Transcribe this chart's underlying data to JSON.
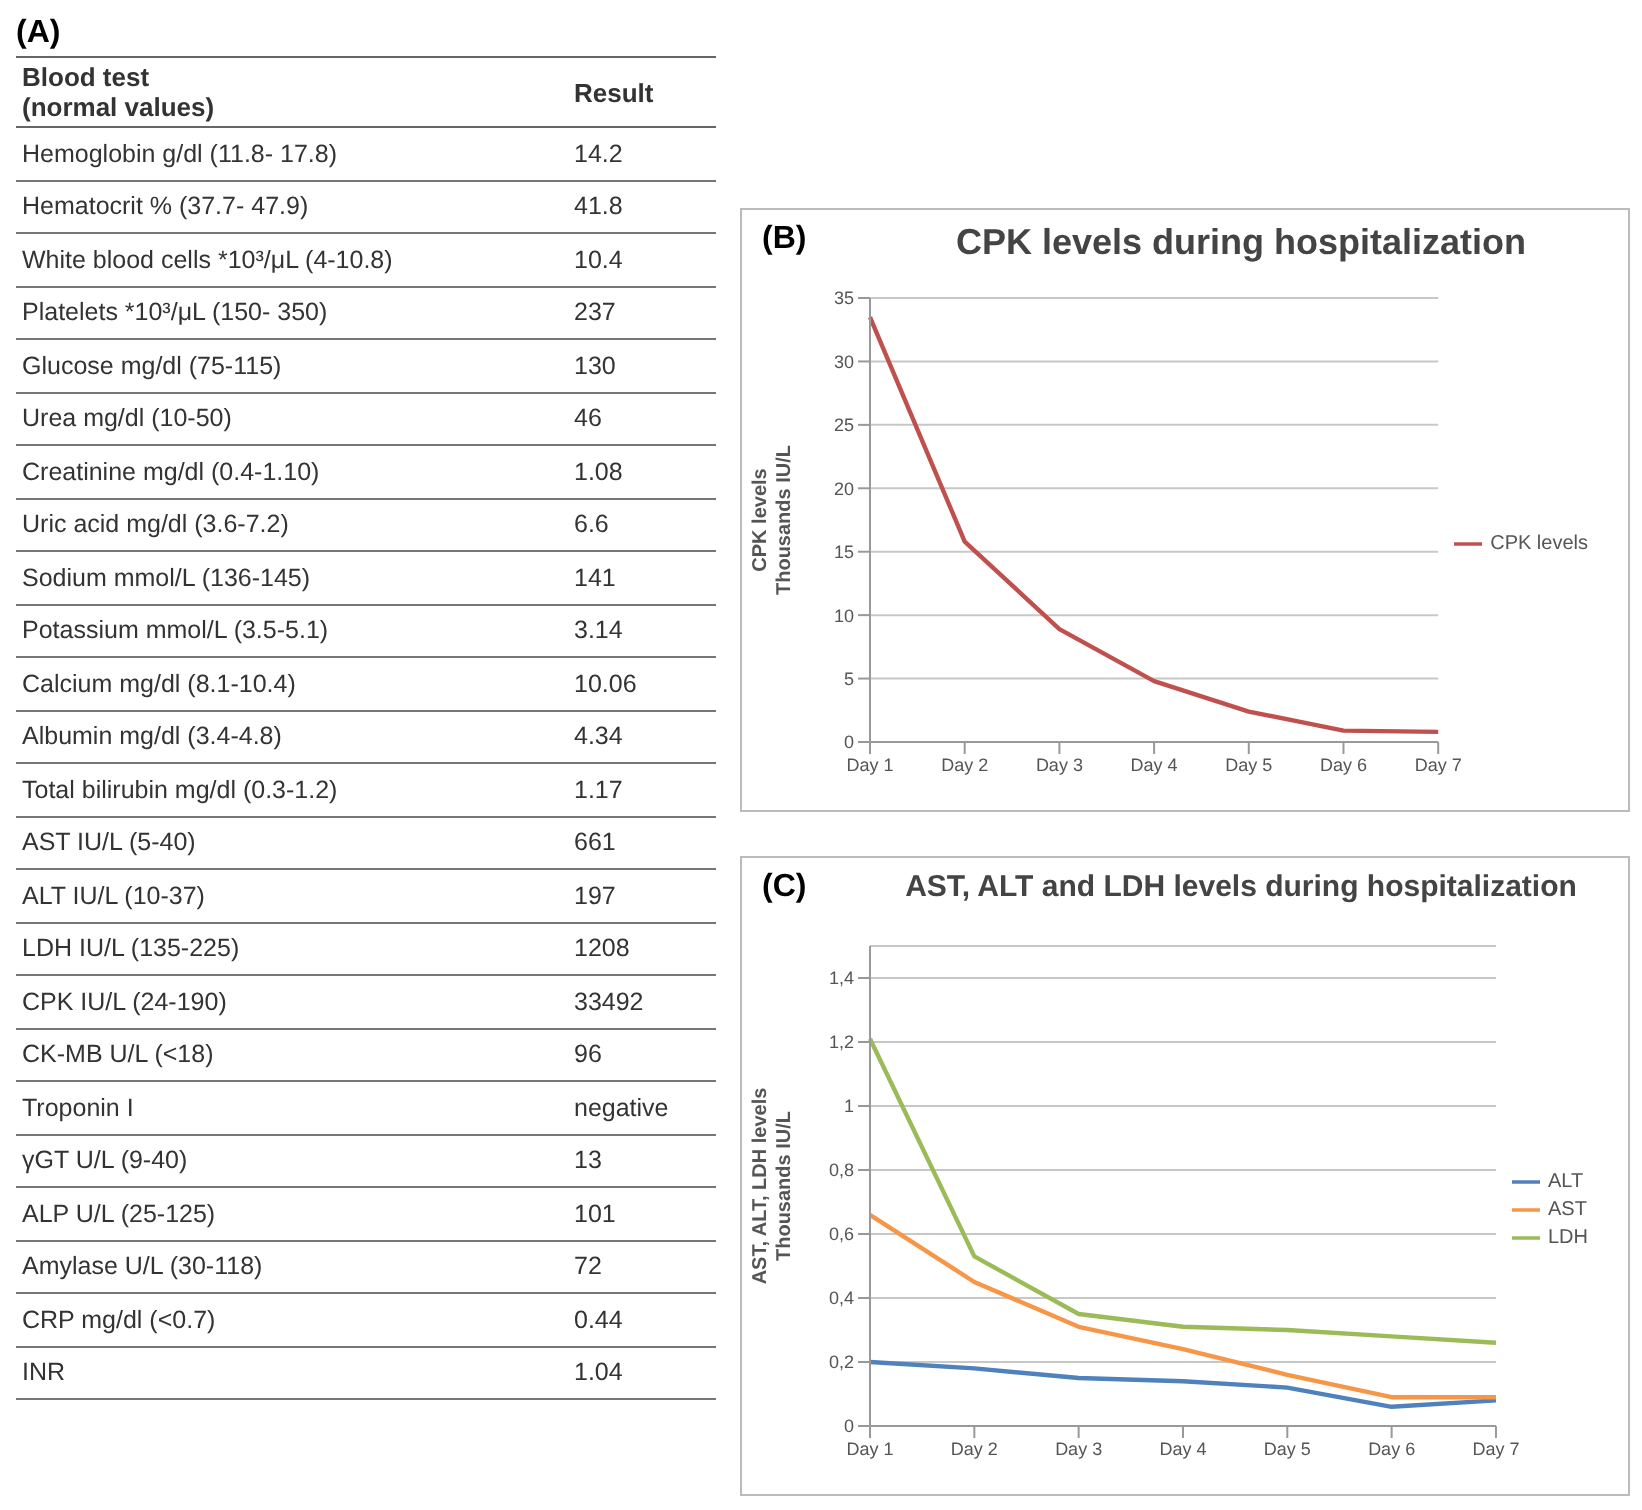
{
  "chart_data": [
    {
      "type": "other",
      "title": "(A)",
      "annotations": [
        "Blood test\n(normal values)",
        "Result"
      ],
      "categories": [
        "Hemoglobin g/dl (11.8- 17.8)",
        "Hematocrit % (37.7- 47.9)",
        "White blood cells *10³/μL (4-10.8)",
        "Platelets *10³/μL (150- 350)",
        "Glucose mg/dl (75-115)",
        "Urea mg/dl (10-50)",
        "Creatinine mg/dl (0.4-1.10)",
        "Uric acid mg/dl (3.6-7.2)",
        "Sodium mmol/L (136-145)",
        "Potassium mmol/L (3.5-5.1)",
        "Calcium mg/dl (8.1-10.4)",
        "Albumin mg/dl (3.4-4.8)",
        "Total bilirubin mg/dl (0.3-1.2)",
        "AST IU/L (5-40)",
        "ALT  IU/L (10-37)",
        "LDH IU/L (135-225)",
        "CPK IU/L (24-190)",
        "CK-MB U/L (<18)",
        "Troponin I",
        "γGT U/L (9-40)",
        "ALP U/L (25-125)",
        "Amylase U/L (30-118)",
        "CRP mg/dl (<0.7)",
        "INR"
      ],
      "value_labels": [
        "14.2",
        "41.8",
        "10.4",
        "237",
        "130",
        "46",
        "1.08",
        "6.6",
        "141",
        "3.14",
        "10.06",
        "4.34",
        "1.17",
        "661",
        "197",
        "1208",
        "33492",
        "96",
        "negative",
        "13",
        "101",
        "72",
        "0.44",
        "1.04"
      ]
    },
    {
      "type": "line",
      "title": "CPK levels during hospitalization",
      "annotations": [
        "(B)"
      ],
      "ylabel": "CPK levels\nThousands IU/L",
      "categories": [
        "Day 1",
        "Day 2",
        "Day 3",
        "Day 4",
        "Day 5",
        "Day 6",
        "Day 7"
      ],
      "series": [
        {
          "name": "CPK levels",
          "color": "#c0504d",
          "values": [
            33.5,
            15.8,
            8.9,
            4.8,
            2.4,
            0.9,
            0.8
          ]
        }
      ],
      "ylim": [
        0,
        35
      ],
      "yticks": [
        0,
        5,
        10,
        15,
        20,
        25,
        30,
        35
      ],
      "grid": "y",
      "legend": "right",
      "marker": "none"
    },
    {
      "type": "line",
      "title": "AST, ALT and LDH levels during hospitalization",
      "annotations": [
        "(C)"
      ],
      "ylabel": "AST, ALT, LDH levels\nThousands IU/L",
      "categories": [
        "Day 1",
        "Day 2",
        "Day 3",
        "Day 4",
        "Day 5",
        "Day 6",
        "Day 7"
      ],
      "series": [
        {
          "name": "ALT",
          "color": "#4f81bd",
          "values": [
            0.2,
            0.18,
            0.15,
            0.14,
            0.12,
            0.06,
            0.08
          ]
        },
        {
          "name": "AST",
          "color": "#f79646",
          "values": [
            0.66,
            0.45,
            0.31,
            0.24,
            0.16,
            0.09,
            0.09
          ]
        },
        {
          "name": "LDH",
          "color": "#9bbb59",
          "values": [
            1.21,
            0.53,
            0.35,
            0.31,
            0.3,
            0.28,
            0.26
          ]
        }
      ],
      "ylim": [
        0,
        1.5
      ],
      "yticks": [
        0,
        {
          "value": 0.2,
          "label": "0,2"
        },
        {
          "value": 0.4,
          "label": "0,4"
        },
        {
          "value": 0.6,
          "label": "0,6"
        },
        {
          "value": 0.8,
          "label": "0,8"
        },
        1,
        {
          "value": 1.2,
          "label": "1,2"
        },
        {
          "value": 1.4,
          "label": "1,4"
        }
      ],
      "grid": "y",
      "legend": "right",
      "marker": "none"
    }
  ]
}
